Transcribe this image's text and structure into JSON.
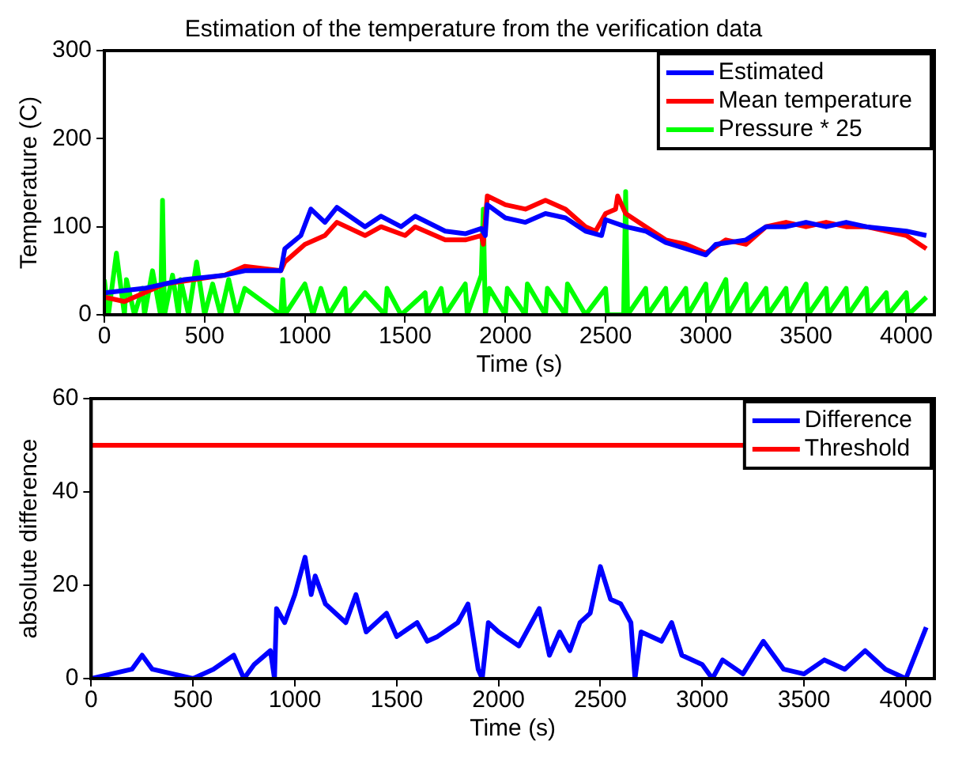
{
  "chart_data": [
    {
      "type": "line",
      "title": "Estimation of the temperature from the verification data",
      "xlabel": "Time (s)",
      "ylabel": "Temperature (C)",
      "xlim": [
        0,
        4140
      ],
      "xticks": [
        0,
        500,
        1000,
        1500,
        2000,
        2500,
        3000,
        3500,
        4000
      ],
      "ylim": [
        0,
        300
      ],
      "yticks": [
        0,
        100,
        200,
        300
      ],
      "grid": false,
      "legend": "top right",
      "marker": "none",
      "line_style": "solid",
      "series": [
        {
          "name": "Estimated",
          "color": "#0000ff",
          "x": [
            0,
            200,
            400,
            600,
            700,
            880,
            900,
            980,
            1030,
            1100,
            1160,
            1300,
            1380,
            1480,
            1550,
            1700,
            1800,
            1880,
            1900,
            1910,
            2000,
            2100,
            2200,
            2300,
            2400,
            2480,
            2500,
            2600,
            2700,
            2800,
            2900,
            3000,
            3050,
            3200,
            3300,
            3400,
            3500,
            3600,
            3700,
            3800,
            4000,
            4100
          ],
          "values": [
            25,
            30,
            40,
            45,
            50,
            50,
            75,
            90,
            120,
            105,
            122,
            100,
            112,
            100,
            112,
            95,
            92,
            98,
            90,
            125,
            110,
            105,
            115,
            110,
            95,
            90,
            108,
            100,
            95,
            82,
            75,
            68,
            80,
            85,
            100,
            100,
            105,
            100,
            105,
            100,
            95,
            90
          ]
        },
        {
          "name": "Mean temperature",
          "color": "#ff0000",
          "x": [
            0,
            100,
            300,
            600,
            700,
            880,
            900,
            1000,
            1100,
            1160,
            1300,
            1380,
            1500,
            1550,
            1700,
            1800,
            1880,
            1890,
            1910,
            2000,
            2100,
            2200,
            2300,
            2400,
            2450,
            2500,
            2550,
            2560,
            2600,
            2700,
            2800,
            2900,
            3000,
            3100,
            3200,
            3300,
            3400,
            3500,
            3600,
            3700,
            3800,
            4000,
            4100
          ],
          "values": [
            20,
            15,
            35,
            45,
            55,
            50,
            60,
            80,
            90,
            105,
            90,
            100,
            90,
            100,
            85,
            85,
            90,
            80,
            135,
            125,
            120,
            130,
            120,
            100,
            95,
            115,
            120,
            135,
            115,
            100,
            85,
            80,
            70,
            85,
            80,
            100,
            105,
            100,
            105,
            100,
            100,
            90,
            75
          ]
        },
        {
          "name": "Pressure * 25",
          "color": "#00ff00",
          "x": [
            0,
            20,
            60,
            100,
            110,
            150,
            190,
            200,
            240,
            280,
            290,
            300,
            340,
            370,
            380,
            420,
            460,
            500,
            540,
            580,
            620,
            660,
            700,
            880,
            890,
            900,
            1000,
            1040,
            1080,
            1120,
            1200,
            1210,
            1300,
            1400,
            1410,
            1480,
            1600,
            1610,
            1680,
            1700,
            1800,
            1810,
            1880,
            1890,
            1900,
            1920,
            2000,
            2010,
            2100,
            2110,
            2200,
            2210,
            2300,
            2310,
            2400,
            2500,
            2510,
            2590,
            2600,
            2610,
            2700,
            2710,
            2800,
            2810,
            2900,
            2910,
            3000,
            3010,
            3100,
            3110,
            3200,
            3210,
            3300,
            3310,
            3400,
            3410,
            3500,
            3510,
            3600,
            3610,
            3700,
            3710,
            3800,
            3810,
            3900,
            3910,
            4000,
            4010,
            4100
          ],
          "values": [
            40,
            0,
            70,
            0,
            40,
            0,
            30,
            0,
            50,
            0,
            130,
            0,
            45,
            0,
            40,
            0,
            60,
            0,
            35,
            0,
            40,
            0,
            30,
            0,
            40,
            0,
            35,
            0,
            30,
            0,
            30,
            0,
            25,
            0,
            30,
            0,
            25,
            0,
            30,
            0,
            35,
            0,
            45,
            120,
            0,
            30,
            0,
            30,
            0,
            35,
            0,
            30,
            0,
            35,
            0,
            30,
            0,
            0,
            140,
            0,
            30,
            0,
            30,
            0,
            30,
            0,
            35,
            0,
            40,
            0,
            35,
            0,
            30,
            0,
            30,
            0,
            35,
            0,
            30,
            0,
            30,
            0,
            30,
            0,
            25,
            0,
            25,
            0,
            20
          ]
        }
      ]
    },
    {
      "type": "line",
      "xlabel": "Time (s)",
      "ylabel": "absolute difference",
      "xlim": [
        0,
        4140
      ],
      "xticks": [
        0,
        500,
        1000,
        1500,
        2000,
        2500,
        3000,
        3500,
        4000
      ],
      "ylim": [
        0,
        60
      ],
      "yticks": [
        0,
        20,
        40,
        60
      ],
      "grid": false,
      "legend": "top right",
      "marker": "none",
      "line_style": "solid",
      "series": [
        {
          "name": "Difference",
          "color": "#0000ff",
          "x": [
            0,
            200,
            250,
            300,
            500,
            600,
            700,
            750,
            800,
            880,
            900,
            910,
            950,
            1000,
            1050,
            1080,
            1100,
            1150,
            1250,
            1300,
            1350,
            1450,
            1500,
            1600,
            1650,
            1700,
            1800,
            1850,
            1900,
            1920,
            1950,
            2000,
            2100,
            2200,
            2250,
            2300,
            2350,
            2400,
            2450,
            2500,
            2550,
            2600,
            2650,
            2670,
            2700,
            2800,
            2850,
            2900,
            3000,
            3050,
            3100,
            3200,
            3300,
            3400,
            3500,
            3600,
            3700,
            3800,
            3900,
            4000,
            4100
          ],
          "values": [
            0,
            2,
            5,
            2,
            0,
            2,
            5,
            0,
            3,
            6,
            0,
            15,
            12,
            18,
            26,
            18,
            22,
            16,
            12,
            18,
            10,
            14,
            9,
            12,
            8,
            9,
            12,
            16,
            2,
            0,
            12,
            10,
            7,
            15,
            5,
            10,
            6,
            12,
            14,
            24,
            17,
            16,
            12,
            0,
            10,
            8,
            12,
            5,
            3,
            0,
            4,
            1,
            8,
            2,
            1,
            4,
            2,
            6,
            2,
            0,
            11
          ]
        },
        {
          "name": "Threshold",
          "color": "#ff0000",
          "x": [
            0,
            3280
          ],
          "values": [
            50,
            50
          ]
        }
      ]
    }
  ]
}
